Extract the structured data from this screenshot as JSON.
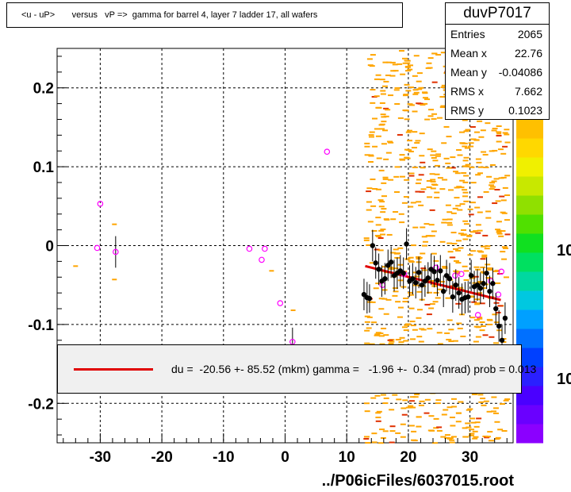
{
  "title": "<u - uP>       versus   vP =>  gamma for barrel 4, layer 7 ladder 17, all wafers",
  "stats": {
    "name": "duvP7017",
    "rows": [
      {
        "key": "Entries",
        "value": "2065"
      },
      {
        "key": "Mean x",
        "value": "22.76"
      },
      {
        "key": "Mean y",
        "value": "-0.04086"
      },
      {
        "key": "RMS x",
        "value": "7.662"
      },
      {
        "key": "RMS y",
        "value": "0.1023"
      }
    ]
  },
  "fit_text": "du =  -20.56 +- 85.52 (mkm) gamma =   -1.96 +-  0.34 (mrad) prob = 0.013",
  "footer": "../P06icFiles/6037015.root",
  "colors": {
    "fit_line": "#e00000",
    "profile_marker": "#000000",
    "open_marker": "#ff00ff",
    "scatter": "#ffa500"
  },
  "chart_data": {
    "type": "scatter",
    "title": "<u - uP>       versus   vP =>  gamma for barrel 4, layer 7 ladder 17, all wafers",
    "xlim": [
      -37,
      37
    ],
    "ylim": [
      -0.25,
      0.25
    ],
    "x_ticks": [
      -30,
      -20,
      -10,
      0,
      10,
      20,
      30
    ],
    "y_ticks": [
      -0.2,
      -0.1,
      0,
      0.1,
      0.2
    ],
    "x_tick_labels": [
      "-30",
      "-20",
      "-10",
      "0",
      "10",
      "20",
      "30"
    ],
    "y_tick_labels": [
      "-0.2",
      "-0.1",
      "0",
      "0.1",
      "0.2"
    ],
    "grid": true,
    "palette_labels": [
      "10",
      "10"
    ],
    "fit_line": {
      "x": [
        13,
        35
      ],
      "y": [
        -0.026,
        -0.069
      ]
    },
    "profile_filled": [
      {
        "x": 12.8,
        "y": -0.062,
        "e": 0.02
      },
      {
        "x": 13.3,
        "y": -0.066,
        "e": 0.02
      },
      {
        "x": 13.7,
        "y": -0.067,
        "e": 0.018
      },
      {
        "x": 14.2,
        "y": 0.0,
        "e": 0.02
      },
      {
        "x": 14.7,
        "y": -0.022,
        "e": 0.02
      },
      {
        "x": 15.2,
        "y": -0.03,
        "e": 0.02
      },
      {
        "x": 15.7,
        "y": -0.045,
        "e": 0.02
      },
      {
        "x": 16.2,
        "y": -0.042,
        "e": 0.02
      },
      {
        "x": 16.7,
        "y": -0.025,
        "e": 0.02
      },
      {
        "x": 17.2,
        "y": -0.021,
        "e": 0.02
      },
      {
        "x": 17.7,
        "y": -0.038,
        "e": 0.02
      },
      {
        "x": 18.2,
        "y": -0.035,
        "e": 0.02
      },
      {
        "x": 18.7,
        "y": -0.032,
        "e": 0.02
      },
      {
        "x": 19.2,
        "y": -0.035,
        "e": 0.02
      },
      {
        "x": 19.7,
        "y": 0.002,
        "e": 0.02
      },
      {
        "x": 20.2,
        "y": -0.045,
        "e": 0.02
      },
      {
        "x": 20.7,
        "y": -0.042,
        "e": 0.02
      },
      {
        "x": 21.2,
        "y": -0.047,
        "e": 0.02
      },
      {
        "x": 21.7,
        "y": -0.034,
        "e": 0.02
      },
      {
        "x": 22.2,
        "y": -0.05,
        "e": 0.02
      },
      {
        "x": 22.7,
        "y": -0.045,
        "e": 0.02
      },
      {
        "x": 23.2,
        "y": -0.041,
        "e": 0.02
      },
      {
        "x": 23.7,
        "y": -0.03,
        "e": 0.02
      },
      {
        "x": 24.2,
        "y": -0.033,
        "e": 0.02
      },
      {
        "x": 24.7,
        "y": -0.044,
        "e": 0.02
      },
      {
        "x": 25.2,
        "y": -0.032,
        "e": 0.02
      },
      {
        "x": 25.7,
        "y": -0.058,
        "e": 0.02
      },
      {
        "x": 26.2,
        "y": -0.038,
        "e": 0.02
      },
      {
        "x": 26.7,
        "y": -0.042,
        "e": 0.02
      },
      {
        "x": 27.2,
        "y": -0.065,
        "e": 0.02
      },
      {
        "x": 27.7,
        "y": -0.05,
        "e": 0.02
      },
      {
        "x": 28.2,
        "y": -0.06,
        "e": 0.02
      },
      {
        "x": 28.7,
        "y": -0.068,
        "e": 0.02
      },
      {
        "x": 29.2,
        "y": -0.066,
        "e": 0.02
      },
      {
        "x": 29.7,
        "y": -0.065,
        "e": 0.02
      },
      {
        "x": 30.2,
        "y": -0.038,
        "e": 0.02
      },
      {
        "x": 30.7,
        "y": -0.052,
        "e": 0.02
      },
      {
        "x": 31.2,
        "y": -0.05,
        "e": 0.02
      },
      {
        "x": 31.7,
        "y": -0.054,
        "e": 0.02
      },
      {
        "x": 32.2,
        "y": -0.048,
        "e": 0.02
      },
      {
        "x": 32.7,
        "y": -0.035,
        "e": 0.02
      },
      {
        "x": 33.2,
        "y": -0.058,
        "e": 0.02
      },
      {
        "x": 33.7,
        "y": -0.048,
        "e": 0.02
      },
      {
        "x": 34.2,
        "y": -0.08,
        "e": 0.02
      },
      {
        "x": 34.7,
        "y": -0.102,
        "e": 0.02
      },
      {
        "x": 35.2,
        "y": -0.12,
        "e": 0.02
      },
      {
        "x": 35.7,
        "y": -0.092,
        "e": 0.02
      }
    ],
    "profile_open": [
      {
        "x": -30.5,
        "y": -0.003,
        "e": 0.0
      },
      {
        "x": -30.0,
        "y": 0.053,
        "e": 0.0
      },
      {
        "x": -27.5,
        "y": -0.008,
        "e": 0.02
      },
      {
        "x": -5.8,
        "y": -0.004,
        "e": 0.0
      },
      {
        "x": -3.8,
        "y": -0.018,
        "e": 0.0
      },
      {
        "x": -3.3,
        "y": -0.004,
        "e": 0.0
      },
      {
        "x": -0.8,
        "y": -0.073,
        "e": 0.0
      },
      {
        "x": 1.2,
        "y": -0.122,
        "e": 0.018
      },
      {
        "x": 6.8,
        "y": 0.119,
        "e": 0.0
      },
      {
        "x": 15.8,
        "y": -0.05,
        "e": 0.0
      },
      {
        "x": 19.3,
        "y": -0.036,
        "e": 0.0
      },
      {
        "x": 24.5,
        "y": -0.028,
        "e": 0.0
      },
      {
        "x": 27.6,
        "y": -0.038,
        "e": 0.0
      },
      {
        "x": 28.6,
        "y": -0.036,
        "e": 0.0
      },
      {
        "x": 31.3,
        "y": -0.088,
        "e": 0.0
      },
      {
        "x": 33.4,
        "y": -0.045,
        "e": 0.0
      },
      {
        "x": 34.6,
        "y": -0.062,
        "e": 0.0
      },
      {
        "x": 35.1,
        "y": -0.033,
        "e": 0.0
      }
    ],
    "scatter_sparse": [
      {
        "x": -34,
        "y": -0.026
      },
      {
        "x": -27.7,
        "y": 0.027
      },
      {
        "x": -27.7,
        "y": -0.043
      },
      {
        "x": -2.2,
        "y": -0.032
      },
      {
        "x": 1.3,
        "y": -0.082
      },
      {
        "x": 34.7,
        "y": 0.142
      }
    ]
  }
}
